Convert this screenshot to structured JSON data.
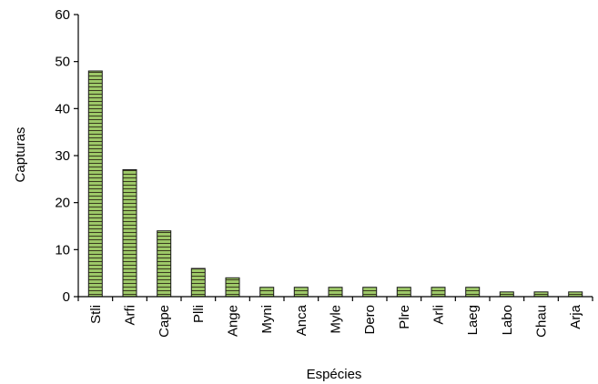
{
  "chart_data": {
    "type": "bar",
    "title": "",
    "xlabel": "Espécies",
    "ylabel": "Capturas",
    "ylim": [
      0,
      60
    ],
    "yticks": [
      0,
      10,
      20,
      30,
      40,
      50,
      60
    ],
    "categories": [
      "Stli",
      "Arfi",
      "Cape",
      "Plli",
      "Ange",
      "Myni",
      "Anca",
      "Myle",
      "Dero",
      "Plre",
      "Arli",
      "Laeg",
      "Labo",
      "Chau",
      "Arja"
    ],
    "values": [
      48,
      27,
      14,
      6,
      4,
      2,
      2,
      2,
      2,
      2,
      2,
      2,
      1,
      1,
      1
    ],
    "bar_fill": "#9dc868",
    "bar_stripe": "#3a3a1e",
    "bar_pattern": "horizontal-stripes",
    "grid": false,
    "legend": "none"
  }
}
